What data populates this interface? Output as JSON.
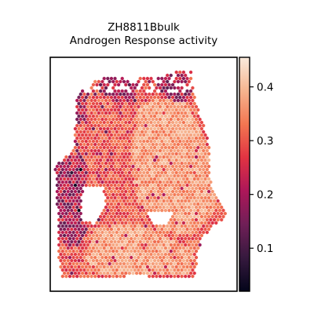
{
  "chart_data": {
    "type": "heatmap",
    "title_line1": "ZH8811Bbulk",
    "title_line2": "Androgen Response activity",
    "xlabel": "",
    "ylabel": "",
    "colorbar": {
      "colormap": "rocket",
      "range": [
        0.02,
        0.455
      ],
      "ticks": [
        0.1,
        0.2,
        0.3,
        0.4
      ],
      "tick_labels": [
        "0.1",
        "0.2",
        "0.3",
        "0.4"
      ],
      "stops": [
        "#03051a",
        "#36193e",
        "#701f57",
        "#ad1759",
        "#e13342",
        "#f37651",
        "#f6b48f",
        "#faebdd"
      ]
    },
    "spot_grid": {
      "dx": 4.6,
      "dy": 4.0,
      "seed": 20231
    },
    "tissue_regions": {
      "main_upper_right": [
        [
          103,
          118
        ],
        [
          118,
          103
        ],
        [
          142,
          96
        ],
        [
          165,
          102
        ],
        [
          200,
          96
        ],
        [
          225,
          90
        ],
        [
          244,
          92
        ],
        [
          246,
          118
        ],
        [
          256,
          150
        ],
        [
          266,
          180
        ],
        [
          268,
          230
        ],
        [
          282,
          262
        ],
        [
          290,
          275
        ],
        [
          274,
          287
        ],
        [
          260,
          300
        ],
        [
          252,
          320
        ],
        [
          248,
          352
        ],
        [
          212,
          356
        ],
        [
          175,
          350
        ],
        [
          135,
          356
        ],
        [
          80,
          356
        ],
        [
          74,
          330
        ],
        [
          74,
          290
        ],
        [
          72,
          240
        ],
        [
          70,
          212
        ],
        [
          94,
          190
        ],
        [
          96,
          160
        ],
        [
          96,
          130
        ]
      ]
    },
    "tissue_holes": [
      [
        [
          108,
          236
        ],
        [
          130,
          238
        ],
        [
          136,
          262
        ],
        [
          120,
          285
        ],
        [
          104,
          280
        ],
        [
          104,
          255
        ]
      ],
      [
        [
          188,
          270
        ],
        [
          218,
          272
        ],
        [
          214,
          288
        ],
        [
          194,
          288
        ]
      ]
    ],
    "high_regions": [
      [
        [
          180,
          130
        ],
        [
          232,
          122
        ],
        [
          262,
          180
        ],
        [
          278,
          262
        ],
        [
          245,
          300
        ],
        [
          200,
          292
        ],
        [
          175,
          255
        ],
        [
          165,
          195
        ]
      ],
      [
        [
          120,
          290
        ],
        [
          175,
          285
        ],
        [
          210,
          300
        ],
        [
          248,
          320
        ],
        [
          240,
          350
        ],
        [
          130,
          352
        ],
        [
          110,
          330
        ]
      ]
    ],
    "low_regions": [
      [
        [
          70,
          205
        ],
        [
          100,
          195
        ],
        [
          112,
          212
        ],
        [
          110,
          300
        ],
        [
          90,
          320
        ],
        [
          70,
          300
        ]
      ],
      [
        [
          128,
          96
        ],
        [
          150,
          94
        ],
        [
          175,
          108
        ],
        [
          172,
          130
        ],
        [
          148,
          128
        ],
        [
          126,
          118
        ]
      ],
      [
        [
          196,
          100
        ],
        [
          240,
          90
        ],
        [
          246,
          130
        ],
        [
          222,
          128
        ],
        [
          200,
          118
        ]
      ],
      [
        [
          95,
          120
        ],
        [
          106,
          114
        ],
        [
          112,
          150
        ],
        [
          96,
          160
        ]
      ]
    ]
  }
}
